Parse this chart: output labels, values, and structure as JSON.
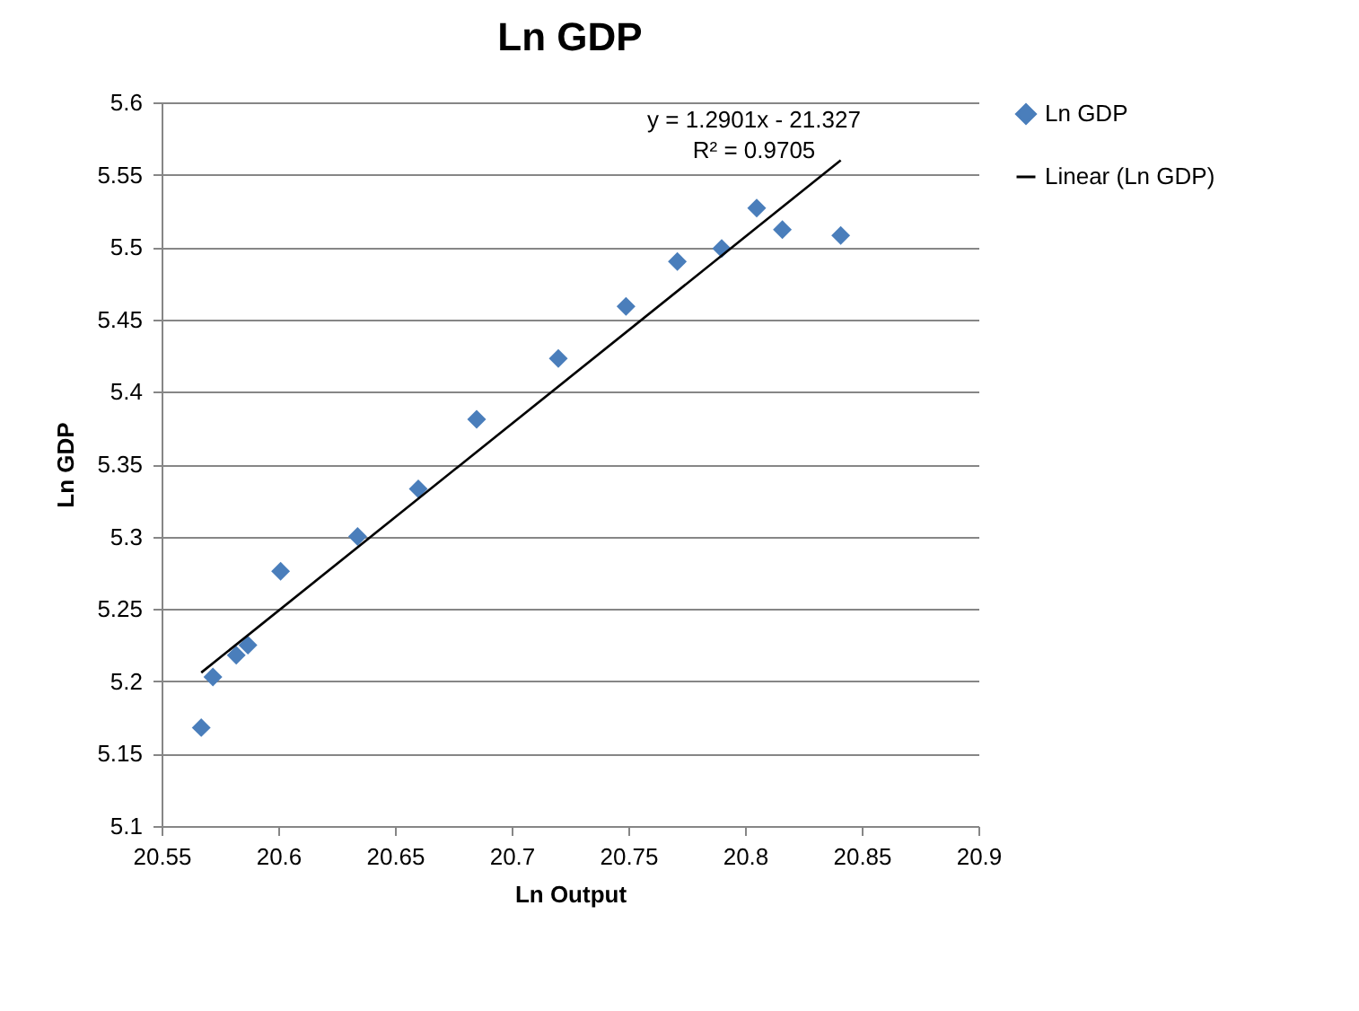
{
  "chart_data": {
    "type": "scatter",
    "title": "Ln GDP",
    "xlabel": "Ln Output",
    "ylabel": "Ln GDP",
    "annotations": [
      "y = 1.2901x - 21.327",
      "R² = 0.9705"
    ],
    "xlim": [
      20.55,
      20.9
    ],
    "xticks": [
      20.55,
      20.6,
      20.65,
      20.7,
      20.75,
      20.8,
      20.85,
      20.9
    ],
    "ylim": [
      5.1,
      5.6
    ],
    "yticks": [
      5.1,
      5.15,
      5.2,
      5.25,
      5.3,
      5.35,
      5.4,
      5.45,
      5.5,
      5.55,
      5.6
    ],
    "grid": "y",
    "legend": "right",
    "series": [
      {
        "name": "Ln GDP",
        "marker": "diamond",
        "color": "#4a7ebb",
        "x": [
          20.567,
          20.572,
          20.582,
          20.587,
          20.601,
          20.634,
          20.66,
          20.685,
          20.72,
          20.749,
          20.771,
          20.79,
          20.805,
          20.816,
          20.841
        ],
        "values": [
          5.168,
          5.203,
          5.218,
          5.225,
          5.276,
          5.3,
          5.333,
          5.381,
          5.423,
          5.459,
          5.49,
          5.499,
          5.527,
          5.512,
          5.508
        ]
      },
      {
        "name": "Linear (Ln GDP)",
        "type": "line",
        "color": "#000000",
        "line_style": "solid",
        "x": [
          20.567,
          20.841
        ],
        "values": [
          5.206,
          5.56
        ]
      }
    ]
  }
}
